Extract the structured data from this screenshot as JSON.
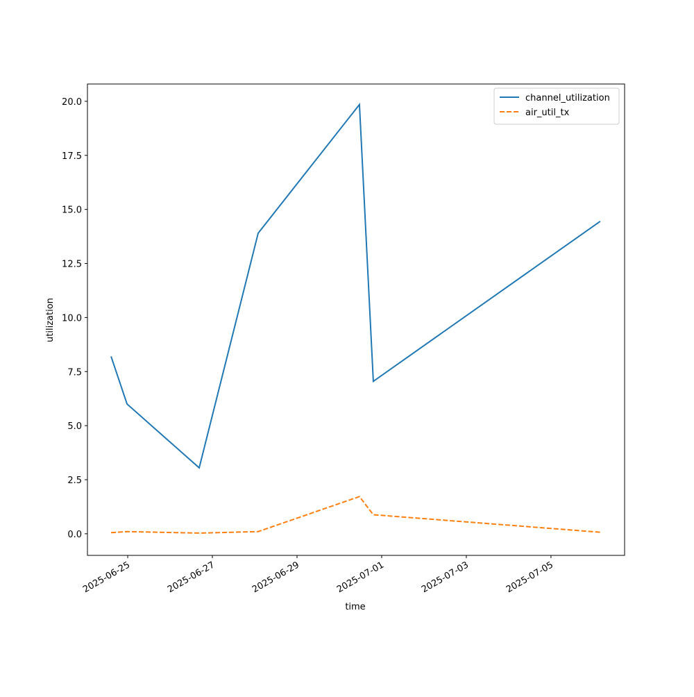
{
  "chart_data": {
    "type": "line",
    "x_label": "time",
    "y_label": "utilization",
    "x": [
      "2025-06-24T14:34",
      "2025-06-24T23:37",
      "2025-06-26T16:32",
      "2025-06-28T01:58",
      "2025-06-30T11:24",
      "2025-06-30T19:16",
      "2025-07-06T03:56"
    ],
    "series": [
      {
        "name": "channel_utilization",
        "color": "#1f77b4",
        "dash": "solid",
        "values": [
          8.2,
          6.0,
          3.05,
          13.9,
          19.85,
          7.05,
          14.45
        ]
      },
      {
        "name": "air_util_tx",
        "color": "#ff7f0e",
        "dash": "dashed",
        "values": [
          0.05,
          0.1,
          0.03,
          0.1,
          1.72,
          0.88,
          0.07
        ]
      }
    ],
    "xlim": [
      "2025-06-24T01:10",
      "2025-07-06T17:45"
    ],
    "xticks": [
      "2025-06-25",
      "2025-06-27",
      "2025-06-29",
      "2025-07-01",
      "2025-07-03",
      "2025-07-05"
    ],
    "ylim": [
      -1.0,
      20.8
    ],
    "yticks": [
      {
        "value": 0,
        "label": "0.0"
      },
      {
        "value": 2.5,
        "label": "2.5"
      },
      {
        "value": 5,
        "label": "5.0"
      },
      {
        "value": 7.5,
        "label": "7.5"
      },
      {
        "value": 10,
        "label": "10.0"
      },
      {
        "value": 12.5,
        "label": "12.5"
      },
      {
        "value": 15,
        "label": "15.0"
      },
      {
        "value": 17.5,
        "label": "17.5"
      },
      {
        "value": 20,
        "label": "20.0"
      }
    ],
    "grid": false,
    "legend": "upper right"
  }
}
